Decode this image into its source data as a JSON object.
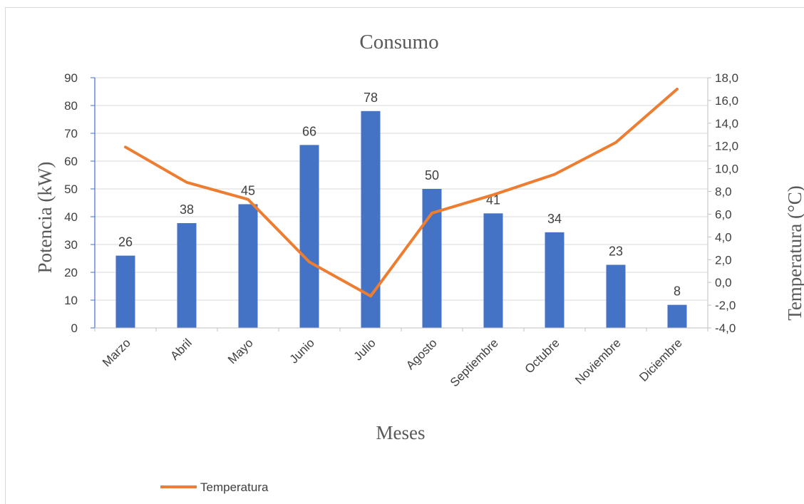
{
  "chart_data": {
    "type": "bar",
    "title": "Consumo",
    "xlabel": "Meses",
    "ylabel": "Potencia (kW)",
    "y2label": "Temperatura (°C)",
    "categories": [
      "Marzo",
      "Abril",
      "Mayo",
      "Junio",
      "Julio",
      "Agosto",
      "Septiembre",
      "Octubre",
      "Noviembre",
      "Diciembre"
    ],
    "ylim": [
      0,
      90
    ],
    "yticks": [
      "0",
      "10",
      "20",
      "30",
      "40",
      "50",
      "60",
      "70",
      "80",
      "90"
    ],
    "y2lim": [
      -4,
      18
    ],
    "y2ticks": [
      "-4,0",
      "-2,0",
      "0,0",
      "2,0",
      "4,0",
      "6,0",
      "8,0",
      "10,0",
      "12,0",
      "14,0",
      "16,0",
      "18,0"
    ],
    "grid": true,
    "legend_position": "bottom-left",
    "series": [
      {
        "type": "bar",
        "axis": "left",
        "color": "#4472c4",
        "values": [
          26,
          37.7,
          44.5,
          65.8,
          78,
          50,
          41.2,
          34.4,
          22.7,
          8.3
        ],
        "labels": [
          "26",
          "38",
          "45",
          "66",
          "78",
          "50",
          "41",
          "34",
          "23",
          "8"
        ]
      },
      {
        "type": "line",
        "axis": "right",
        "name": "Temperatura",
        "color": "#ed7d31",
        "values": [
          11.9,
          8.8,
          7.3,
          1.8,
          -1.2,
          6.1,
          7.7,
          9.5,
          12.3,
          17.0
        ]
      }
    ]
  }
}
